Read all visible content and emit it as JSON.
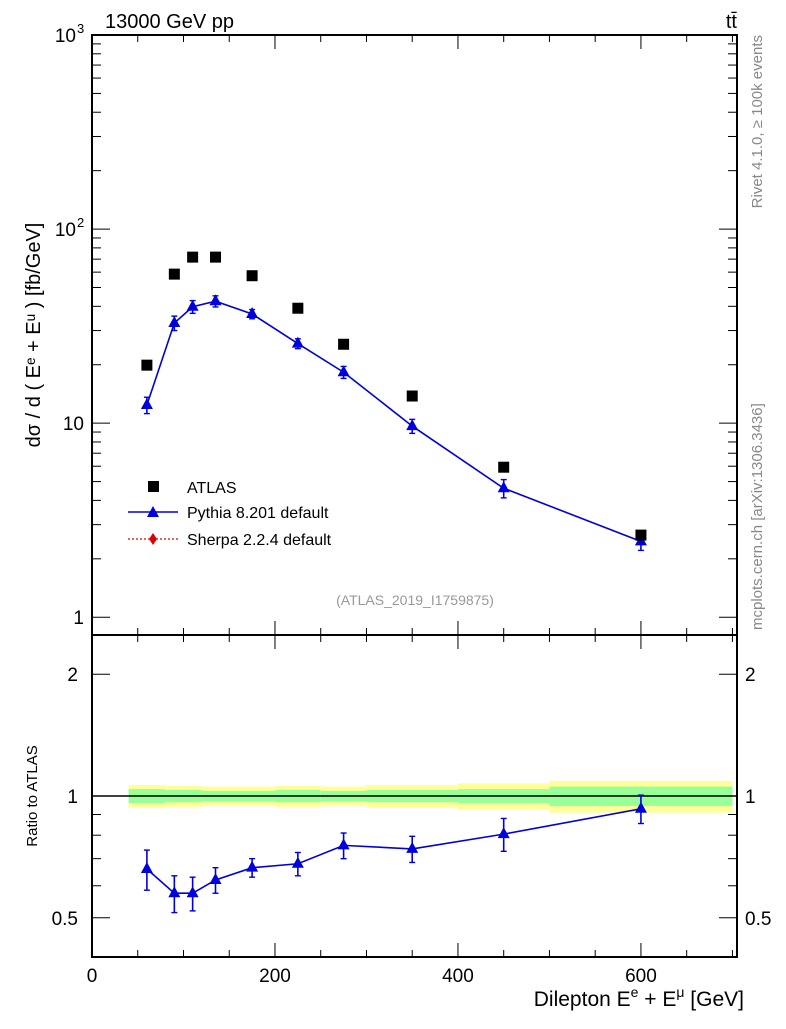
{
  "chart_data": [
    {
      "type": "scatter",
      "title_left": "13000 GeV pp",
      "title_right": "tt̄",
      "ylabel": "dσ / d ( Eᵉ + Eᵘ ) [fb/GeV]",
      "ylabel_parts": {
        "a": "dσ / d ( E",
        "sup1": "e",
        "b": " + E",
        "sup2": "μ",
        "c": " ) [fb/GeV]"
      },
      "yscale": "log",
      "ylim": [
        0.81,
        1000
      ],
      "xlim": [
        0,
        705
      ],
      "ytick_labels": [
        {
          "v": 1,
          "t": "1"
        },
        {
          "v": 10,
          "t": "10"
        },
        {
          "v": 100,
          "t": "10",
          "sup": "2"
        },
        {
          "v": 1000,
          "t": "10",
          "sup": "3"
        }
      ],
      "watermark": "(ATLAS_2019_I1759875)",
      "side_text_top": "Rivet 4.1.0, ≥ 100k events",
      "side_text_bottom": "mcplots.cern.ch [arXiv:1306.3436]",
      "legend_position": "middle-left",
      "series": [
        {
          "name": "ATLAS",
          "marker": "square",
          "color": "#000000",
          "x": [
            60,
            90,
            110,
            135,
            175,
            225,
            275,
            350,
            450,
            600
          ],
          "y": [
            19.9,
            58.6,
            71.7,
            71.7,
            57.5,
            39.1,
            25.5,
            13.8,
            5.93,
            2.65
          ]
        },
        {
          "name": "Pythia 8.201 default",
          "marker": "triangle",
          "color": "#0000dd",
          "x": [
            60,
            90,
            110,
            135,
            175,
            225,
            275,
            350,
            450,
            600
          ],
          "y": [
            12.4,
            32.8,
            39.8,
            42.5,
            36.5,
            25.7,
            18.3,
            9.66,
            4.62,
            2.46
          ],
          "yerr": [
            1.2,
            2.8,
            3.0,
            2.8,
            2.0,
            1.5,
            1.3,
            0.8,
            0.5,
            0.25
          ]
        },
        {
          "name": "Sherpa 2.2.4 default",
          "marker": "diamond",
          "color": "#dd0000",
          "x": [],
          "y": []
        }
      ]
    },
    {
      "type": "line",
      "ylabel": "Ratio to ATLAS",
      "xlabel_parts": {
        "a": "Dilepton E",
        "sup1": "e",
        "b": " + E",
        "sup2": "μ",
        "c": " [GeV]"
      },
      "yscale": "log",
      "ylim": [
        0.4,
        2.5
      ],
      "xlim": [
        0,
        705
      ],
      "ytick_labels": [
        {
          "v": 0.5,
          "t": "0.5"
        },
        {
          "v": 1,
          "t": "1"
        },
        {
          "v": 2,
          "t": "2"
        }
      ],
      "xtick_labels": [
        {
          "v": 0,
          "t": "0"
        },
        {
          "v": 200,
          "t": "200"
        },
        {
          "v": 400,
          "t": "400"
        },
        {
          "v": 600,
          "t": "600"
        }
      ],
      "band_bins": [
        40,
        80,
        120,
        200,
        250,
        300,
        400,
        500,
        700
      ],
      "band_stat": [
        0.04,
        0.035,
        0.03,
        0.035,
        0.03,
        0.035,
        0.04,
        0.055
      ],
      "band_total": [
        0.065,
        0.06,
        0.055,
        0.06,
        0.055,
        0.065,
        0.075,
        0.09
      ],
      "series": [
        {
          "name": "Pythia 8.201 default",
          "color": "#0000dd",
          "x": [
            60,
            90,
            110,
            135,
            175,
            225,
            275,
            350,
            450,
            600
          ],
          "y": [
            0.66,
            0.575,
            0.575,
            0.62,
            0.665,
            0.68,
            0.755,
            0.74,
            0.805,
            0.93
          ],
          "yerr": [
            0.075,
            0.06,
            0.055,
            0.045,
            0.035,
            0.045,
            0.055,
            0.055,
            0.075,
            0.075
          ]
        }
      ]
    }
  ]
}
